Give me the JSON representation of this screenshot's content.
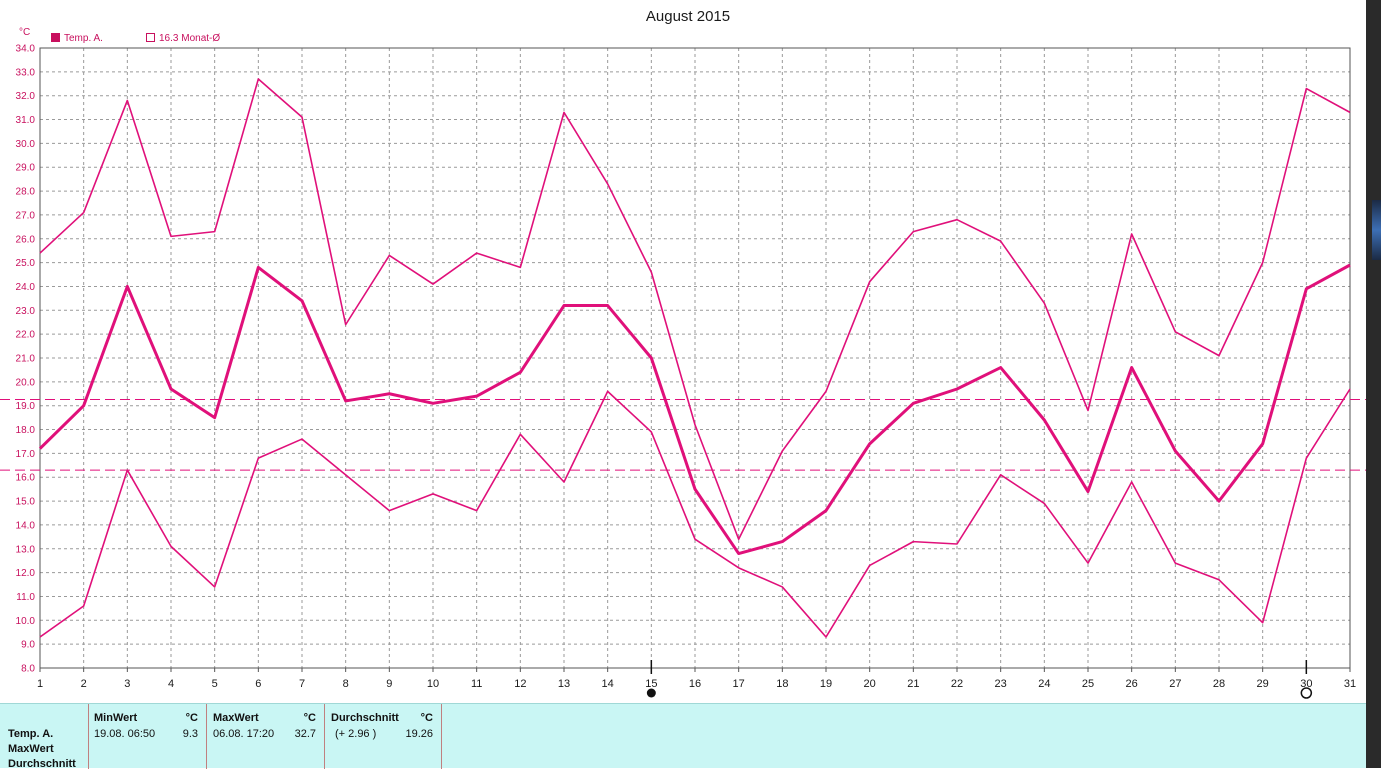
{
  "chart_data": {
    "type": "line",
    "title": "August 2015",
    "ylabel": "°C",
    "xlabel": "",
    "ylim": [
      8.0,
      34.0
    ],
    "xlim": [
      1,
      31
    ],
    "grid": true,
    "legend_position": "top-left",
    "x": [
      1,
      2,
      3,
      4,
      5,
      6,
      7,
      8,
      9,
      10,
      11,
      12,
      13,
      14,
      15,
      16,
      17,
      18,
      19,
      20,
      21,
      22,
      23,
      24,
      25,
      26,
      27,
      28,
      29,
      30,
      31
    ],
    "y_ticks": [
      "8.0",
      "9.0",
      "10.0",
      "11.0",
      "12.0",
      "13.0",
      "14.0",
      "15.0",
      "16.0",
      "17.0",
      "18.0",
      "19.0",
      "20.0",
      "21.0",
      "22.0",
      "23.0",
      "24.0",
      "25.0",
      "26.0",
      "27.0",
      "28.0",
      "29.0",
      "30.0",
      "31.0",
      "32.0",
      "33.0",
      "34.0"
    ],
    "x_ticks": [
      "1",
      "2",
      "3",
      "4",
      "5",
      "6",
      "7",
      "8",
      "9",
      "10",
      "11",
      "12",
      "13",
      "14",
      "15",
      "16",
      "17",
      "18",
      "19",
      "20",
      "21",
      "22",
      "23",
      "24",
      "25",
      "26",
      "27",
      "28",
      "29",
      "30",
      "31"
    ],
    "legend": [
      {
        "label": "Temp. A.",
        "marker": "filled-square"
      },
      {
        "label": "16.3 Monat-Ø",
        "marker": "empty-square"
      }
    ],
    "series": [
      {
        "role": "max",
        "values": [
          25.4,
          27.1,
          31.8,
          26.1,
          26.3,
          32.7,
          31.1,
          22.4,
          25.3,
          24.1,
          25.4,
          24.8,
          31.3,
          28.3,
          24.6,
          18.2,
          13.4,
          17.1,
          19.6,
          24.2,
          26.3,
          26.8,
          25.9,
          23.3,
          18.8,
          26.2,
          22.1,
          21.1,
          25.0,
          32.3,
          31.3
        ]
      },
      {
        "role": "mean",
        "values": [
          17.2,
          19.0,
          24.0,
          19.7,
          18.5,
          24.8,
          23.4,
          19.2,
          19.5,
          19.1,
          19.4,
          20.4,
          23.2,
          23.2,
          21.0,
          15.5,
          12.8,
          13.3,
          14.6,
          17.4,
          19.1,
          19.7,
          20.6,
          18.4,
          15.4,
          20.6,
          17.1,
          15.0,
          17.4,
          23.9,
          24.9
        ]
      },
      {
        "role": "min",
        "values": [
          9.3,
          10.6,
          16.3,
          13.1,
          11.4,
          16.8,
          17.6,
          16.1,
          14.6,
          15.3,
          14.6,
          17.8,
          15.8,
          19.6,
          17.9,
          13.4,
          12.2,
          11.4,
          9.3,
          12.3,
          13.3,
          13.2,
          16.1,
          14.9,
          12.4,
          15.8,
          12.4,
          11.7,
          9.9,
          16.8,
          19.7
        ]
      }
    ],
    "reference_lines": [
      {
        "label": "16.3 Monat-Ø",
        "value": 16.3
      },
      {
        "label": "Durchschnitt",
        "value": 19.26
      }
    ],
    "moon_phase_markers": [
      {
        "day": 15,
        "symbol": "new-moon"
      },
      {
        "day": 30,
        "symbol": "full-moon"
      }
    ],
    "colors": {
      "line": "#e0107a",
      "axis_text": "#c8105e",
      "grid": "#9a9a9a",
      "panel_bg": "#c9f6f4"
    }
  },
  "stats": {
    "row_labels": [
      "Temp. A.",
      "MaxWert",
      "Durchschnitt"
    ],
    "min": {
      "header": "MinWert",
      "unit": "°C",
      "datetime": "19.08.  06:50",
      "value": "9.3"
    },
    "max": {
      "header": "MaxWert",
      "unit": "°C",
      "datetime": "06.08.  17:20",
      "value": "32.7"
    },
    "avg": {
      "header": "Durchschnitt",
      "unit": "°C",
      "delta": "(+ 2.96 )",
      "value": "19.26"
    }
  }
}
